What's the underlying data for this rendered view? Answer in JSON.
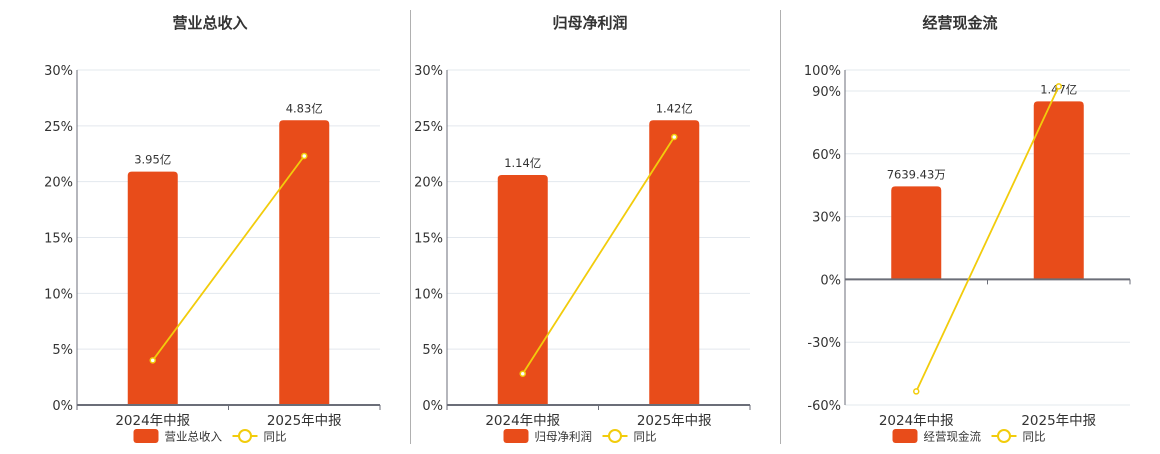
{
  "colors": {
    "bar": "#E84C1A",
    "line": "#F2CC0C",
    "grid": "#E3E8EE",
    "axis": "#6B6E78",
    "text": "#333333"
  },
  "legend": {
    "yoy_label": "同比"
  },
  "chart_data": [
    {
      "type": "bar",
      "title": "营业总收入",
      "categories": [
        "2024年中报",
        "2025年中报"
      ],
      "series": [
        {
          "name": "营业总收入",
          "type": "bar",
          "labels": [
            "3.95亿",
            "4.83亿"
          ],
          "bar_height_pct": [
            20.9,
            25.5
          ]
        },
        {
          "name": "同比",
          "type": "line",
          "values": [
            4.0,
            22.3
          ]
        }
      ],
      "yticks": [
        "0%",
        "5%",
        "10%",
        "15%",
        "20%",
        "25%",
        "30%"
      ],
      "ylim": [
        0,
        30
      ],
      "grid": true,
      "legend_position": "bottom"
    },
    {
      "type": "bar",
      "title": "归母净利润",
      "categories": [
        "2024年中报",
        "2025年中报"
      ],
      "series": [
        {
          "name": "归母净利润",
          "type": "bar",
          "labels": [
            "1.14亿",
            "1.42亿"
          ],
          "bar_height_pct": [
            20.6,
            25.5
          ]
        },
        {
          "name": "同比",
          "type": "line",
          "values": [
            2.8,
            24.0
          ]
        }
      ],
      "yticks": [
        "0%",
        "5%",
        "10%",
        "15%",
        "20%",
        "25%",
        "30%"
      ],
      "ylim": [
        0,
        30
      ],
      "grid": true,
      "legend_position": "bottom"
    },
    {
      "type": "bar",
      "title": "经营现金流",
      "categories": [
        "2024年中报",
        "2025年中报"
      ],
      "series": [
        {
          "name": "经营现金流",
          "type": "bar",
          "labels": [
            "7639.43万",
            "1.47亿"
          ],
          "bar_height_pct": [
            44.4,
            85.0
          ]
        },
        {
          "name": "同比",
          "type": "line",
          "values": [
            -53.5,
            92.2
          ]
        }
      ],
      "yticks": [
        "-60%",
        "-30%",
        "0%",
        "30%",
        "60%",
        "90%",
        "100%"
      ],
      "ytick_values": [
        -60,
        -30,
        0,
        30,
        60,
        90,
        100
      ],
      "ylim": [
        -60,
        100
      ],
      "grid": true,
      "legend_position": "bottom"
    }
  ]
}
